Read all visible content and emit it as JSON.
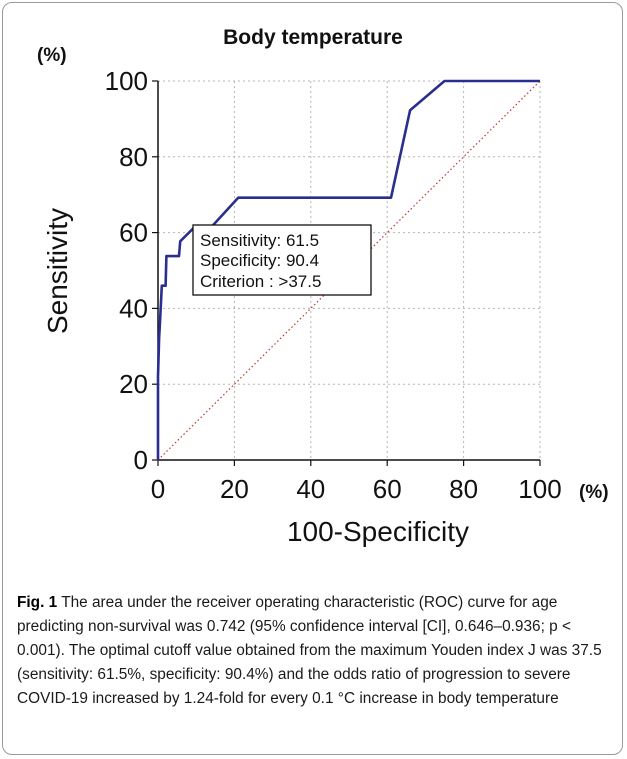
{
  "chart_data": {
    "type": "line",
    "title": "Body temperature",
    "xlabel": "100-Specificity",
    "ylabel": "Sensitivity",
    "x_unit": "(%)",
    "y_unit": "(%)",
    "xlim": [
      0,
      100
    ],
    "ylim": [
      0,
      100
    ],
    "xticks": [
      0,
      20,
      40,
      60,
      80,
      100
    ],
    "yticks": [
      0,
      20,
      40,
      60,
      80,
      100
    ],
    "grid": true,
    "series": [
      {
        "color": "#2a2f8f",
        "x": [
          0,
          0,
          0.3,
          0.6,
          1.0,
          1.1,
          2.0,
          2.2,
          5.5,
          5.8,
          9.6,
          14.0,
          21.0,
          61.0,
          66.0,
          75.0,
          100.0
        ],
        "y": [
          0,
          22,
          32,
          38,
          46,
          46,
          46,
          53.8,
          53.8,
          57.7,
          61.5,
          61.5,
          69.2,
          69.2,
          92.3,
          100,
          100
        ]
      },
      {
        "color": "#c0392b",
        "style": "dotted",
        "x": [
          0,
          100
        ],
        "y": [
          0,
          100
        ]
      }
    ],
    "annotation": {
      "lines": [
        "Sensitivity: 61.5",
        "Specificity: 90.4",
        "Criterion : >37.5"
      ]
    }
  },
  "caption": {
    "label": "Fig. 1",
    "text": "The area under the receiver operating characteristic (ROC) curve for age predicting non-survival was 0.742 (95% confidence interval [CI], 0.646–0.936; p < 0.001). The optimal cutoff value obtained from the maximum Youden index J was 37.5 (sensitivity: 61.5%, specificity: 90.4%) and the odds ratio of progression to severe COVID-19 increased by 1.24-fold for every 0.1 °C increase in body temperature"
  }
}
